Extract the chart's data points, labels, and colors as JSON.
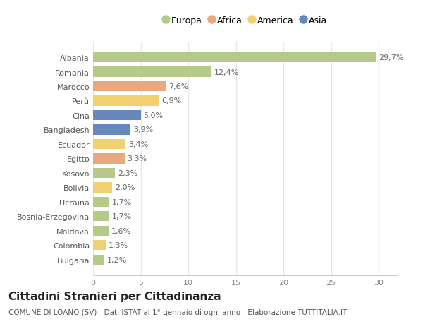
{
  "categories": [
    "Albania",
    "Romania",
    "Marocco",
    "Perù",
    "Cina",
    "Bangladesh",
    "Ecuador",
    "Egitto",
    "Kosovo",
    "Bolivia",
    "Ucraina",
    "Bosnia-Erzegovina",
    "Moldova",
    "Colombia",
    "Bulgaria"
  ],
  "values": [
    29.7,
    12.4,
    7.6,
    6.9,
    5.0,
    3.9,
    3.4,
    3.3,
    2.3,
    2.0,
    1.7,
    1.7,
    1.6,
    1.3,
    1.2
  ],
  "labels": [
    "29,7%",
    "12,4%",
    "7,6%",
    "6,9%",
    "5,0%",
    "3,9%",
    "3,4%",
    "3,3%",
    "2,3%",
    "2,0%",
    "1,7%",
    "1,7%",
    "1,6%",
    "1,3%",
    "1,2%"
  ],
  "colors": [
    "#b5c98a",
    "#b5c98a",
    "#e8a97e",
    "#f0d070",
    "#6688bb",
    "#6688bb",
    "#f0d070",
    "#e8a97e",
    "#b5c98a",
    "#f0d070",
    "#b5c98a",
    "#b5c98a",
    "#b5c98a",
    "#f0d070",
    "#b5c98a"
  ],
  "legend": [
    {
      "label": "Europa",
      "color": "#b5c98a"
    },
    {
      "label": "Africa",
      "color": "#e8a97e"
    },
    {
      "label": "America",
      "color": "#f0d070"
    },
    {
      "label": "Asia",
      "color": "#6688bb"
    }
  ],
  "xlim": [
    0,
    32
  ],
  "xticks": [
    0,
    5,
    10,
    15,
    20,
    25,
    30
  ],
  "title": "Cittadini Stranieri per Cittadinanza",
  "subtitle": "COMUNE DI LOANO (SV) - Dati ISTAT al 1° gennaio di ogni anno - Elaborazione TUTTITALIA.IT",
  "background_color": "#ffffff",
  "grid_color": "#e8e8e8",
  "bar_height": 0.7,
  "label_fontsize": 8,
  "tick_fontsize": 8,
  "title_fontsize": 11,
  "subtitle_fontsize": 7.5
}
